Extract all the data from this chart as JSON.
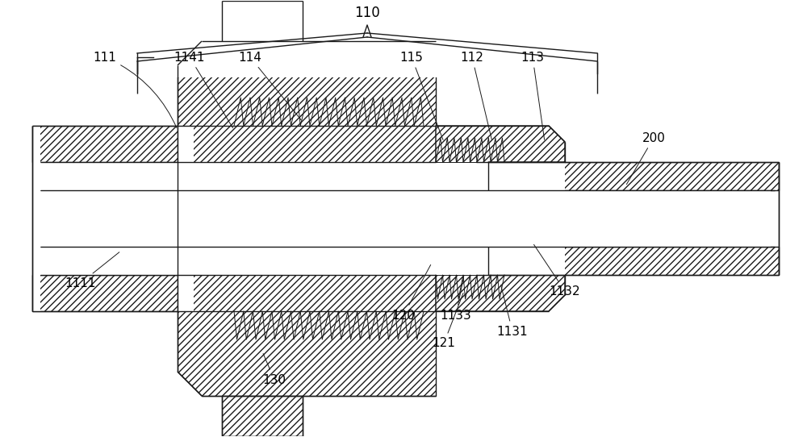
{
  "bg_color": "#ffffff",
  "line_color": "#1a1a1a",
  "fig_width": 10.0,
  "fig_height": 5.42,
  "font_size": 11
}
